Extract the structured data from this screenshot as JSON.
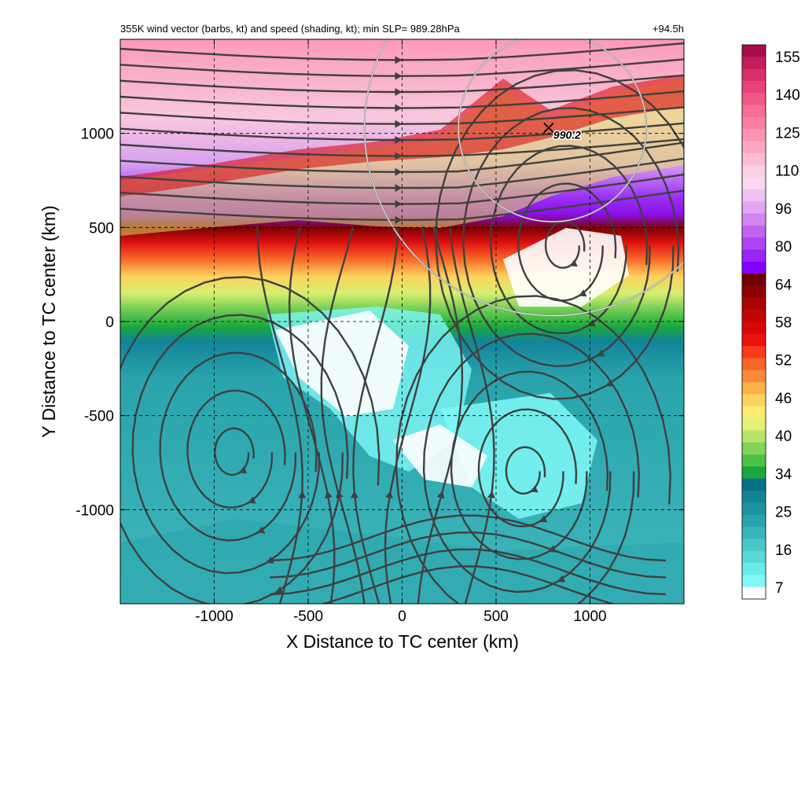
{
  "chart_data": {
    "type": "heatmap",
    "title": "355K wind vector (barbs, kt) and speed (shading, kt); min SLP= 989.28hPa",
    "lead_time": "+94.5h",
    "xlabel": "X Distance to TC center (km)",
    "ylabel": "Y Distance to TC center (km)",
    "xlim": [
      -1500,
      1500
    ],
    "ylim": [
      -1500,
      1500
    ],
    "x_ticks": [
      -1000,
      -500,
      0,
      500,
      1000
    ],
    "y_ticks": [
      -1000,
      -500,
      0,
      500,
      1000
    ],
    "x_tick_labels": [
      "-1000",
      "-500",
      "0",
      "500",
      "1000"
    ],
    "y_tick_labels": [
      "-1000",
      "-500",
      "0",
      "500",
      "1000"
    ],
    "grid": "dashed",
    "speed_units": "kt",
    "colorbar": {
      "placement": "right",
      "label_values": [
        "7",
        "16",
        "25",
        "34",
        "40",
        "46",
        "52",
        "58",
        "64",
        "80",
        "96",
        "110",
        "125",
        "140",
        "155"
      ],
      "colors": [
        "#ffffff",
        "#7ff8f8",
        "#6aeaea",
        "#5ad8d8",
        "#4ac8c8",
        "#3ab4b8",
        "#2aa4ac",
        "#1c94a0",
        "#128496",
        "#06728a",
        "#1aa83c",
        "#4ec24a",
        "#82d45a",
        "#b8e46a",
        "#e4f078",
        "#fcec74",
        "#fcd25e",
        "#fcb048",
        "#fa8a36",
        "#f86628",
        "#f63c1c",
        "#ec1210",
        "#d80808",
        "#c00604",
        "#a80404",
        "#8c0202",
        "#6c0202",
        "#8200ff",
        "#9a24f8",
        "#ae44f4",
        "#c064f0",
        "#d286f0",
        "#e2a6f2",
        "#eec2f4",
        "#f8d8f0",
        "#fcd0e4",
        "#fcbcd4",
        "#fca8c4",
        "#fc94b4",
        "#fc80a4",
        "#f86e96",
        "#f05888",
        "#e64478",
        "#d8306a",
        "#c41c5a",
        "#a80c4c"
      ]
    },
    "min_slp_marker": {
      "x": 780,
      "y": 1030,
      "label": "990.2"
    },
    "range_rings": [
      {
        "center_x": 800,
        "center_y": 1030,
        "radius_km": 500
      },
      {
        "center_x": 800,
        "center_y": 1030,
        "radius_km": 1000
      }
    ],
    "vortices": [
      {
        "x": -900,
        "y": -700
      },
      {
        "x": 650,
        "y": -800
      },
      {
        "x": 860,
        "y": 400
      }
    ],
    "background_speed_bands_kt": [
      {
        "y_from": 1300,
        "y_to": 1500,
        "speed": 125
      },
      {
        "y_from": 950,
        "y_to": 1300,
        "speed": 100
      },
      {
        "y_from": 850,
        "y_to": 950,
        "speed": 70
      },
      {
        "y_from": 600,
        "y_to": 850,
        "speed": 55
      },
      {
        "y_from": 500,
        "y_to": 600,
        "speed": 38
      },
      {
        "y_from": -1500,
        "y_to": 500,
        "speed": 20
      }
    ]
  }
}
